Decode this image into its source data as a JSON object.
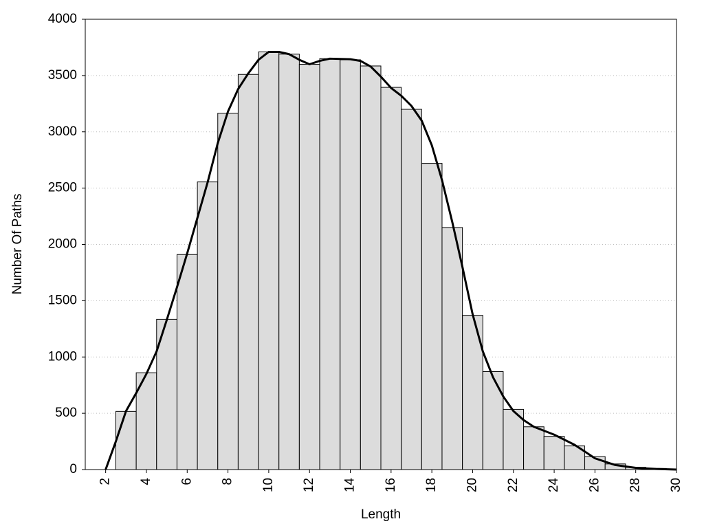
{
  "chart_data": {
    "type": "histogram",
    "x_label": "Length",
    "y_label": "Number Of Paths",
    "bins": [
      2.5,
      3.5,
      4.5,
      5.5,
      6.5,
      7.5,
      8.5,
      9.5,
      10.5,
      11.5,
      12.5,
      13.5,
      14.5,
      15.5,
      16.5,
      17.5,
      18.5,
      19.5,
      20.5,
      21.5,
      22.5,
      23.5,
      24.5,
      25.5,
      26.5,
      27.5,
      28.5,
      29.5
    ],
    "values": [
      517,
      860,
      1335,
      1910,
      2555,
      3165,
      3510,
      3710,
      3690,
      3600,
      3650,
      3640,
      3585,
      3395,
      3200,
      2720,
      2150,
      1370,
      870,
      535,
      380,
      295,
      210,
      115,
      50,
      20,
      10
    ],
    "color": "#dcdcdc",
    "line": {
      "color": "#000000",
      "x": [
        2,
        2.5,
        3,
        3.5,
        4,
        4.5,
        5,
        5.5,
        6,
        7,
        7.5,
        8,
        8.5,
        9,
        9.5,
        10,
        10.5,
        11,
        11.5,
        12,
        12.5,
        13,
        14,
        14.5,
        15,
        15.5,
        16,
        16.5,
        17,
        17.5,
        18,
        18.5,
        19,
        19.5,
        20,
        20.5,
        21,
        21.5,
        22,
        22.5,
        23,
        24,
        25,
        25.5,
        26,
        27,
        28,
        29,
        30
      ],
      "values": [
        0,
        250,
        520,
        680,
        850,
        1050,
        1330,
        1620,
        1920,
        2550,
        2900,
        3180,
        3380,
        3520,
        3640,
        3710,
        3710,
        3690,
        3640,
        3600,
        3630,
        3650,
        3645,
        3630,
        3580,
        3490,
        3390,
        3320,
        3230,
        3100,
        2880,
        2570,
        2200,
        1800,
        1380,
        1050,
        820,
        650,
        520,
        440,
        380,
        310,
        220,
        160,
        100,
        40,
        15,
        5,
        0
      ]
    },
    "xlim": [
      1,
      30
    ],
    "ylim": [
      0,
      4000
    ],
    "xticks": [
      2,
      4,
      6,
      8,
      10,
      12,
      14,
      16,
      18,
      20,
      22,
      24,
      26,
      28,
      30
    ],
    "yticks": [
      0,
      500,
      1000,
      1500,
      2000,
      2500,
      3000,
      3500,
      4000
    ],
    "grid": true
  }
}
